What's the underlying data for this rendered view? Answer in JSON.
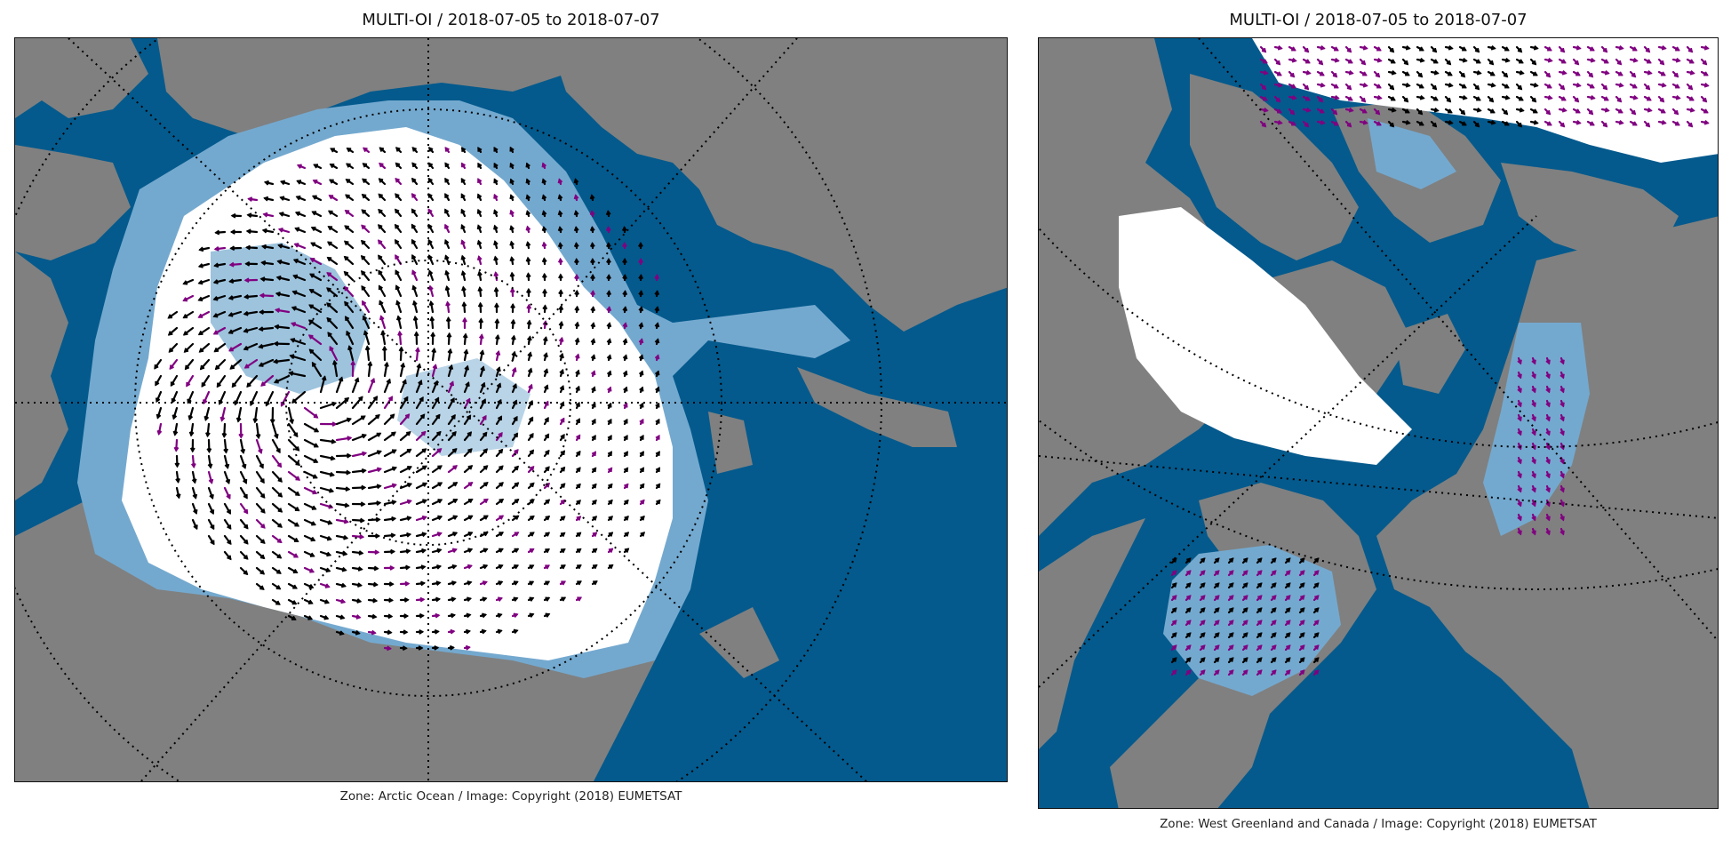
{
  "panels": [
    {
      "title": "MULTI-OI / 2018-07-05 to 2018-07-07",
      "caption": "Zone: Arctic Ocean / Image: Copyright (2018) EUMETSAT"
    },
    {
      "title": "MULTI-OI / 2018-07-05 to 2018-07-07",
      "caption": "Zone: West Greenland and Canada / Image: Copyright (2018) EUMETSAT"
    }
  ],
  "colors": {
    "open_water": "#045a8d",
    "land": "#808080",
    "thin_ice": "#74a9cf",
    "sea_ice": "#ffffff",
    "drift_vector_primary": "#000000",
    "drift_vector_secondary": "#800080",
    "graticule": "#000000"
  }
}
